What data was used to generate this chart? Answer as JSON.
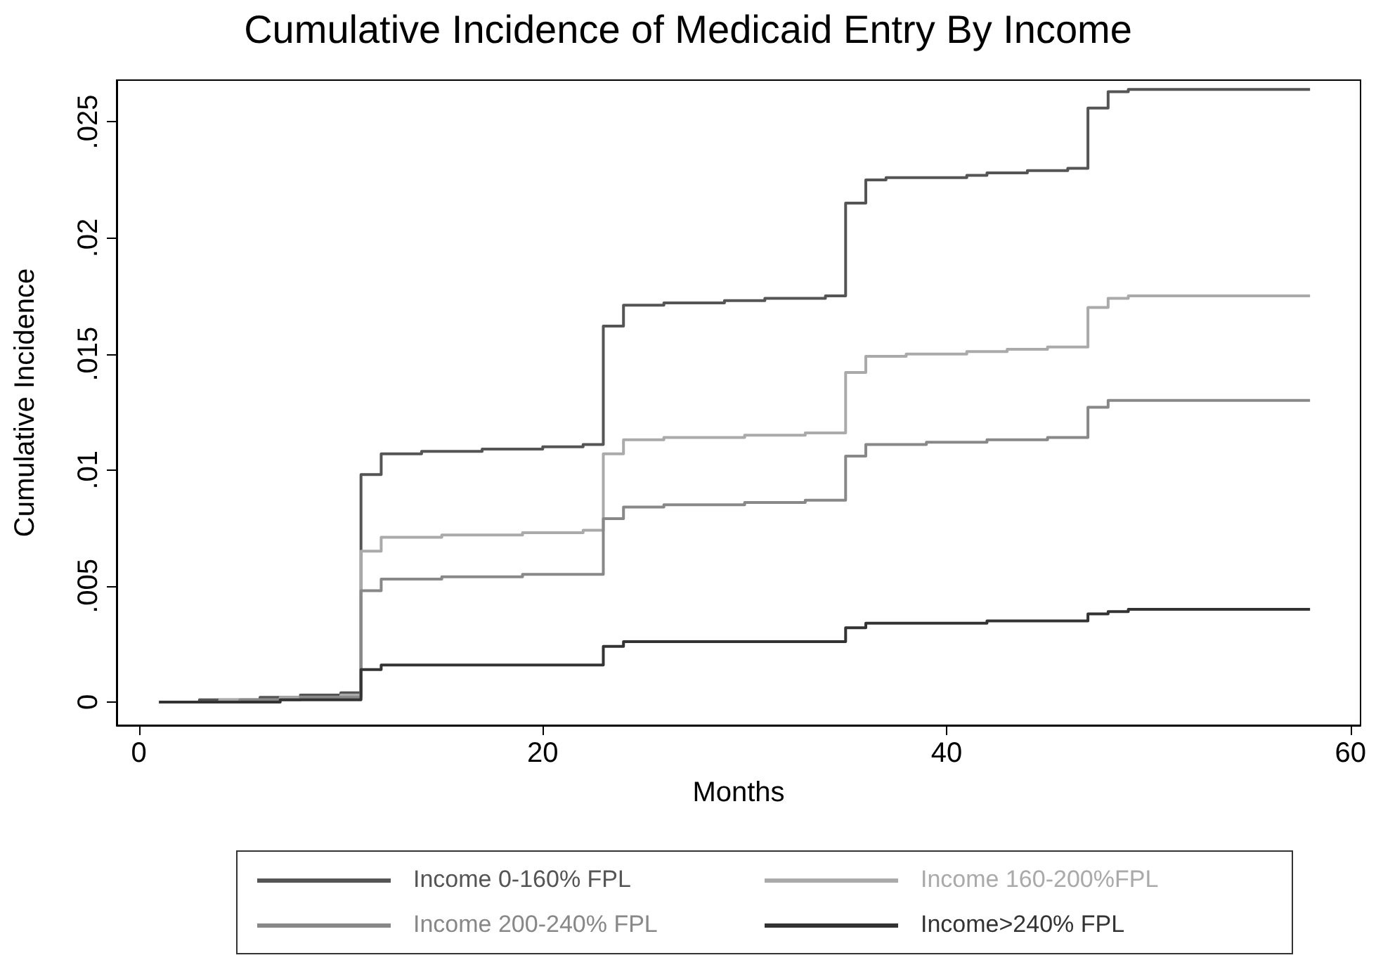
{
  "chart_data": {
    "type": "step",
    "title": "Cumulative Incidence of Medicaid Entry By Income",
    "xlabel": "Months",
    "ylabel": "Cumulative Incidence",
    "x": [
      1,
      2,
      3,
      4,
      5,
      6,
      7,
      8,
      9,
      10,
      11,
      12,
      13,
      14,
      15,
      16,
      17,
      18,
      19,
      20,
      21,
      22,
      23,
      24,
      25,
      26,
      27,
      28,
      29,
      30,
      31,
      32,
      33,
      34,
      35,
      36,
      37,
      38,
      39,
      40,
      41,
      42,
      43,
      44,
      45,
      46,
      47,
      48,
      49,
      50,
      51,
      52,
      53,
      54,
      55,
      56,
      57,
      58
    ],
    "series": [
      {
        "name": "Income 0-160% FPL",
        "color": "#555555",
        "values": [
          0,
          0,
          0.0001,
          0.0001,
          0.0001,
          0.0002,
          0.0002,
          0.0003,
          0.0003,
          0.0004,
          0.0098,
          0.0107,
          0.0107,
          0.0108,
          0.0108,
          0.0108,
          0.0109,
          0.0109,
          0.0109,
          0.011,
          0.011,
          0.0111,
          0.0162,
          0.0171,
          0.0171,
          0.0172,
          0.0172,
          0.0172,
          0.0173,
          0.0173,
          0.0174,
          0.0174,
          0.0174,
          0.0175,
          0.0215,
          0.0225,
          0.0226,
          0.0226,
          0.0226,
          0.0226,
          0.0227,
          0.0228,
          0.0228,
          0.0229,
          0.0229,
          0.023,
          0.0256,
          0.0263,
          0.0264,
          0.0264,
          0.0264,
          0.0264,
          0.0264,
          0.0264,
          0.0264,
          0.0264,
          0.0264,
          0.0264
        ]
      },
      {
        "name": "Income 160-200%FPL",
        "color": "#aaaaaa",
        "values": [
          0,
          0,
          0,
          0.0001,
          0.0001,
          0.0001,
          0.0002,
          0.0002,
          0.0002,
          0.0003,
          0.0065,
          0.0071,
          0.0071,
          0.0071,
          0.0072,
          0.0072,
          0.0072,
          0.0072,
          0.0073,
          0.0073,
          0.0073,
          0.0074,
          0.0107,
          0.0113,
          0.0113,
          0.0114,
          0.0114,
          0.0114,
          0.0114,
          0.0115,
          0.0115,
          0.0115,
          0.0116,
          0.0116,
          0.0142,
          0.0149,
          0.0149,
          0.015,
          0.015,
          0.015,
          0.0151,
          0.0151,
          0.0152,
          0.0152,
          0.0153,
          0.0153,
          0.017,
          0.0174,
          0.0175,
          0.0175,
          0.0175,
          0.0175,
          0.0175,
          0.0175,
          0.0175,
          0.0175,
          0.0175,
          0.0175
        ]
      },
      {
        "name": "Income 200-240% FPL",
        "color": "#888888",
        "values": [
          0,
          0,
          0,
          0,
          0.0001,
          0.0001,
          0.0001,
          0.0002,
          0.0002,
          0.0002,
          0.0048,
          0.0053,
          0.0053,
          0.0053,
          0.0054,
          0.0054,
          0.0054,
          0.0054,
          0.0055,
          0.0055,
          0.0055,
          0.0055,
          0.0079,
          0.0084,
          0.0084,
          0.0085,
          0.0085,
          0.0085,
          0.0085,
          0.0086,
          0.0086,
          0.0086,
          0.0087,
          0.0087,
          0.0106,
          0.0111,
          0.0111,
          0.0111,
          0.0112,
          0.0112,
          0.0112,
          0.0113,
          0.0113,
          0.0113,
          0.0114,
          0.0114,
          0.0127,
          0.013,
          0.013,
          0.013,
          0.013,
          0.013,
          0.013,
          0.013,
          0.013,
          0.013,
          0.013,
          0.013
        ]
      },
      {
        "name": "Income>240% FPL",
        "color": "#333333",
        "values": [
          0,
          0,
          0,
          0,
          0,
          0,
          0.0001,
          0.0001,
          0.0001,
          0.0001,
          0.0014,
          0.0016,
          0.0016,
          0.0016,
          0.0016,
          0.0016,
          0.0016,
          0.0016,
          0.0016,
          0.0016,
          0.0016,
          0.0016,
          0.0024,
          0.0026,
          0.0026,
          0.0026,
          0.0026,
          0.0026,
          0.0026,
          0.0026,
          0.0026,
          0.0026,
          0.0026,
          0.0026,
          0.0032,
          0.0034,
          0.0034,
          0.0034,
          0.0034,
          0.0034,
          0.0034,
          0.0035,
          0.0035,
          0.0035,
          0.0035,
          0.0035,
          0.0038,
          0.0039,
          0.004,
          0.004,
          0.004,
          0.004,
          0.004,
          0.004,
          0.004,
          0.004,
          0.004,
          0.004
        ]
      }
    ],
    "xlim": [
      -1.1,
      60.5
    ],
    "xticks": [
      0,
      20,
      40,
      60
    ],
    "ylim": [
      -0.001,
      0.0268
    ],
    "yticks": [
      0,
      {
        "value": 0.005,
        "label": ".005"
      },
      {
        "value": 0.01,
        "label": ".01"
      },
      {
        "value": 0.015,
        "label": ".015"
      },
      {
        "value": 0.02,
        "label": ".02"
      },
      {
        "value": 0.025,
        "label": ".025"
      }
    ],
    "grid": false,
    "legend": "bottom",
    "marker": "none",
    "line_style": "solid"
  }
}
